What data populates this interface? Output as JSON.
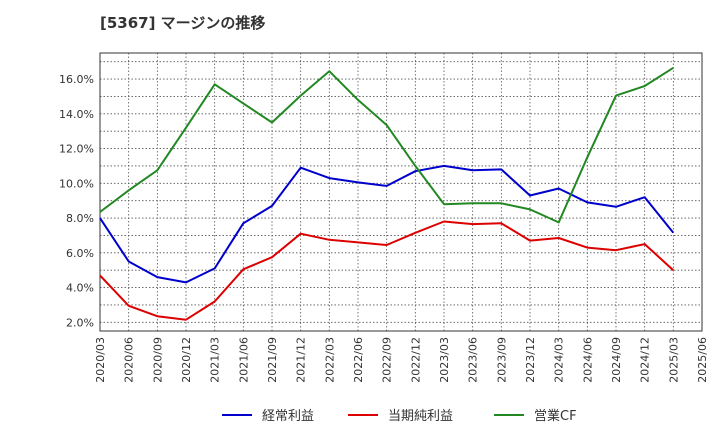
{
  "chart_data": {
    "type": "line",
    "title": "[5367]  マージンの推移",
    "xlabel": "",
    "ylabel": "",
    "ylim": [
      1.5,
      17.5
    ],
    "grid": true,
    "legend_position": "bottom",
    "y_ticks": [
      "2.0%",
      "4.0%",
      "6.0%",
      "8.0%",
      "10.0%",
      "12.0%",
      "14.0%",
      "16.0%"
    ],
    "y_tick_values": [
      2,
      4,
      6,
      8,
      10,
      12,
      14,
      16
    ],
    "categories": [
      "2020/03",
      "2020/06",
      "2020/09",
      "2020/12",
      "2021/03",
      "2021/06",
      "2021/09",
      "2021/12",
      "2022/03",
      "2022/06",
      "2022/09",
      "2022/12",
      "2023/03",
      "2023/06",
      "2023/09",
      "2023/12",
      "2024/03",
      "2024/06",
      "2024/09",
      "2024/12",
      "2025/03",
      "2025/06"
    ],
    "series": [
      {
        "name": "経常利益",
        "color": "#0000cc",
        "values": [
          8.0,
          5.5,
          4.6,
          4.3,
          5.1,
          7.7,
          8.7,
          10.9,
          10.3,
          10.05,
          9.85,
          10.7,
          11.0,
          10.75,
          10.8,
          9.3,
          9.7,
          8.9,
          8.65,
          9.2,
          7.15,
          null
        ]
      },
      {
        "name": "当期純利益",
        "color": "#dd0000",
        "values": [
          4.7,
          2.95,
          2.35,
          2.15,
          3.2,
          5.05,
          5.75,
          7.1,
          6.75,
          6.6,
          6.45,
          7.15,
          7.8,
          7.65,
          7.7,
          6.7,
          6.85,
          6.3,
          6.15,
          6.5,
          5.0,
          null
        ]
      },
      {
        "name": "営業CF",
        "color": "#228822",
        "values": [
          8.35,
          9.6,
          10.75,
          13.2,
          15.7,
          14.6,
          13.5,
          15.05,
          16.45,
          14.8,
          13.35,
          11.0,
          8.8,
          8.85,
          8.85,
          8.5,
          7.75,
          11.5,
          15.05,
          15.6,
          16.65,
          null
        ]
      }
    ]
  }
}
